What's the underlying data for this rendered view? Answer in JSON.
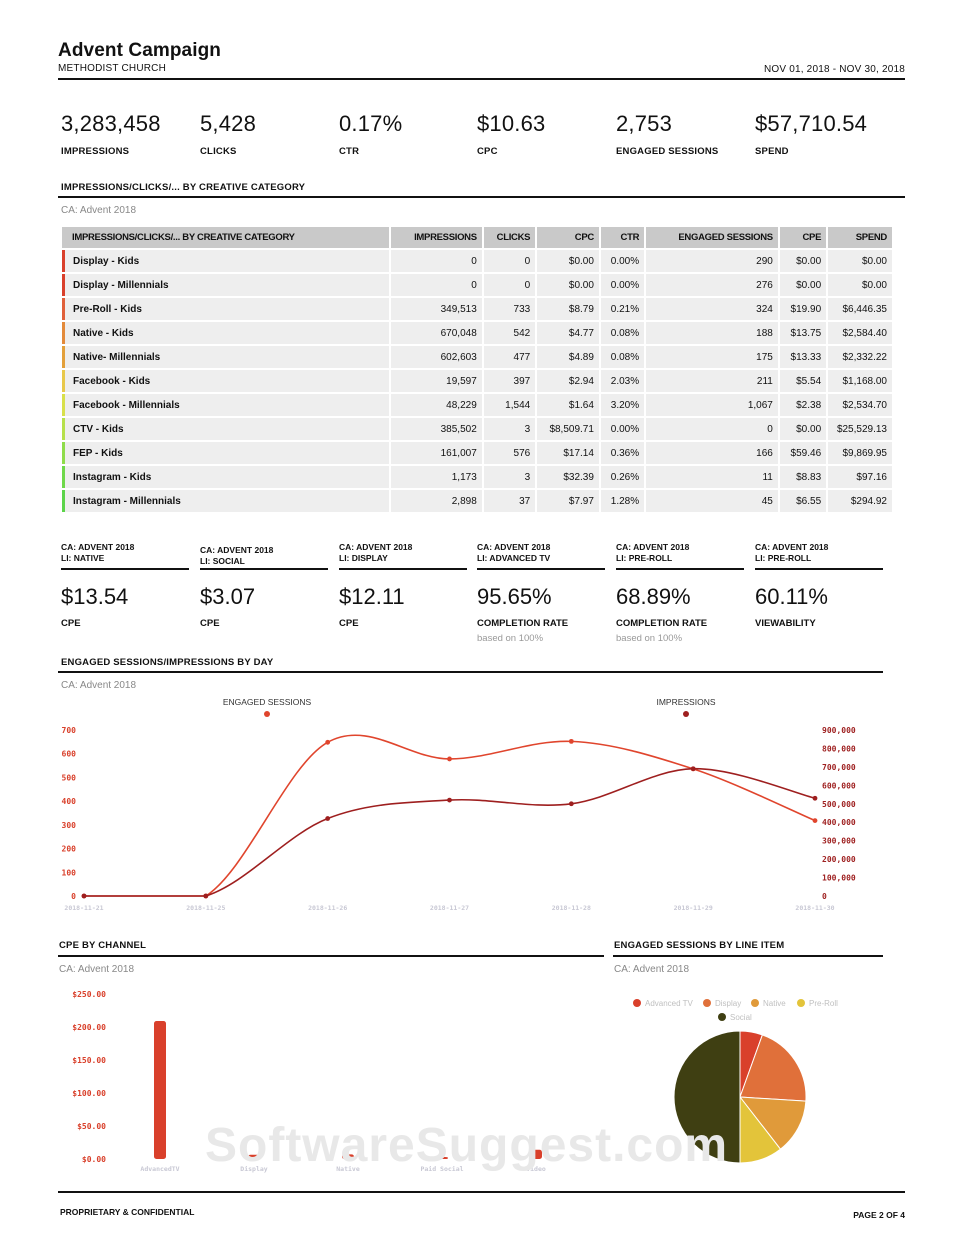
{
  "header": {
    "title": "Advent Campaign",
    "subtitle": "METHODIST CHURCH",
    "date_range": "NOV 01, 2018 - NOV 30, 2018"
  },
  "kpis": [
    {
      "value": "3,283,458",
      "label": "IMPRESSIONS"
    },
    {
      "value": "5,428",
      "label": "CLICKS"
    },
    {
      "value": "0.17%",
      "label": "CTR"
    },
    {
      "value": "$10.63",
      "label": "CPC"
    },
    {
      "value": "2,753",
      "label": "ENGAGED SESSIONS"
    },
    {
      "value": "$57,710.54",
      "label": "SPEND"
    }
  ],
  "creative_section": {
    "title": "IMPRESSIONS/CLICKS/... BY CREATIVE CATEGORY",
    "subtitle": "CA: Advent 2018",
    "columns": [
      "IMPRESSIONS/CLICKS/... BY CREATIVE CATEGORY",
      "IMPRESSIONS",
      "CLICKS",
      "CPC",
      "CTR",
      "ENGAGED SESSIONS",
      "CPE",
      "SPEND"
    ],
    "rows": [
      {
        "name": "Display - Kids",
        "color": "#d9402b",
        "cells": [
          "0",
          "0",
          "$0.00",
          "0.00%",
          "290",
          "$0.00",
          "$0.00"
        ]
      },
      {
        "name": "Display - Millennials",
        "color": "#d9402b",
        "cells": [
          "0",
          "0",
          "$0.00",
          "0.00%",
          "276",
          "$0.00",
          "$0.00"
        ]
      },
      {
        "name": "Pre-Roll - Kids",
        "color": "#e0603a",
        "cells": [
          "349,513",
          "733",
          "$8.79",
          "0.21%",
          "324",
          "$19.90",
          "$6,446.35"
        ]
      },
      {
        "name": "Native - Kids",
        "color": "#e38a3a",
        "cells": [
          "670,048",
          "542",
          "$4.77",
          "0.08%",
          "188",
          "$13.75",
          "$2,584.40"
        ]
      },
      {
        "name": "Native- Millennials",
        "color": "#e3a03a",
        "cells": [
          "602,603",
          "477",
          "$4.89",
          "0.08%",
          "175",
          "$13.33",
          "$2,332.22"
        ]
      },
      {
        "name": "Facebook - Kids",
        "color": "#e8c84a",
        "cells": [
          "19,597",
          "397",
          "$2.94",
          "2.03%",
          "211",
          "$5.54",
          "$1,168.00"
        ]
      },
      {
        "name": "Facebook - Millennials",
        "color": "#d8e04a",
        "cells": [
          "48,229",
          "1,544",
          "$1.64",
          "3.20%",
          "1,067",
          "$2.38",
          "$2,534.70"
        ]
      },
      {
        "name": "CTV - Kids",
        "color": "#b6e04a",
        "cells": [
          "385,502",
          "3",
          "$8,509.71",
          "0.00%",
          "0",
          "$0.00",
          "$25,529.13"
        ]
      },
      {
        "name": "FEP - Kids",
        "color": "#8fdc4a",
        "cells": [
          "161,007",
          "576",
          "$17.14",
          "0.36%",
          "166",
          "$59.46",
          "$9,869.95"
        ]
      },
      {
        "name": "Instagram - Kids",
        "color": "#6fd84a",
        "cells": [
          "1,173",
          "3",
          "$32.39",
          "0.26%",
          "11",
          "$8.83",
          "$97.16"
        ]
      },
      {
        "name": "Instagram - Millennials",
        "color": "#5cd44a",
        "cells": [
          "2,898",
          "37",
          "$7.97",
          "1.28%",
          "45",
          "$6.55",
          "$294.92"
        ]
      }
    ]
  },
  "mini_kpis": [
    {
      "l1": "CA: ADVENT 2018",
      "l2": "LI: NATIVE",
      "value": "$13.54",
      "caption": "CPE",
      "note": ""
    },
    {
      "l1": "CA: ADVENT 2018",
      "l2": "LI: SOCIAL",
      "value": "$3.07",
      "caption": "CPE",
      "note": ""
    },
    {
      "l1": "CA: ADVENT 2018",
      "l2": "LI: DISPLAY",
      "value": "$12.11",
      "caption": "CPE",
      "note": ""
    },
    {
      "l1": "CA: ADVENT 2018",
      "l2": "LI: ADVANCED TV",
      "value": "95.65%",
      "caption": "COMPLETION RATE",
      "note": "based on 100%"
    },
    {
      "l1": "CA: ADVENT 2018",
      "l2": "LI: PRE-ROLL",
      "value": "68.89%",
      "caption": "COMPLETION RATE",
      "note": "based on 100%"
    },
    {
      "l1": "CA: ADVENT 2018",
      "l2": "LI: PRE-ROLL",
      "value": "60.11%",
      "caption": "VIEWABILITY",
      "note": ""
    }
  ],
  "line_section": {
    "title": "ENGAGED SESSIONS/IMPRESSIONS BY DAY",
    "subtitle": "CA: Advent 2018"
  },
  "cpe_section": {
    "title": "CPE BY CHANNEL",
    "subtitle": "CA: Advent 2018"
  },
  "pie_section": {
    "title": "ENGAGED SESSIONS BY LINE ITEM",
    "subtitle": "CA: Advent 2018"
  },
  "chart_data": [
    {
      "type": "line",
      "x": [
        "2018-11-21",
        "2018-11-25",
        "2018-11-26",
        "2018-11-27",
        "2018-11-28",
        "2018-11-29",
        "2018-11-30"
      ],
      "series": [
        {
          "name": "ENGAGED SESSIONS",
          "axis": "left",
          "color": "#e0452d",
          "values": [
            0,
            0,
            648,
            578,
            652,
            536,
            318
          ]
        },
        {
          "name": "IMPRESSIONS",
          "axis": "right",
          "color": "#9e1f1f",
          "values": [
            0,
            0,
            420000,
            520000,
            500000,
            690000,
            530000
          ]
        }
      ],
      "ylim_left": [
        0,
        700
      ],
      "yticks_left": [
        "0",
        "100",
        "200",
        "300",
        "400",
        "500",
        "600",
        "700"
      ],
      "ylim_right": [
        0,
        900000
      ],
      "yticks_right": [
        "0",
        "100,000",
        "200,000",
        "300,000",
        "400,000",
        "500,000",
        "600,000",
        "700,000",
        "800,000",
        "900,000"
      ]
    },
    {
      "type": "bar",
      "categories": [
        "AdvancedTV",
        "Display",
        "Native",
        "Paid Social",
        "Video"
      ],
      "values": [
        209,
        6.5,
        7,
        1.5,
        14
      ],
      "color": "#d9402b",
      "ylim": [
        0,
        250
      ],
      "yticks": [
        "$0.00",
        "$50.00",
        "$100.00",
        "$150.00",
        "$200.00",
        "$250.00"
      ]
    },
    {
      "type": "pie",
      "slices": [
        {
          "name": "Advanced TV",
          "value": 5.5,
          "color": "#d9402b"
        },
        {
          "name": "Display",
          "value": 20.5,
          "color": "#e0703a"
        },
        {
          "name": "Native",
          "value": 13.5,
          "color": "#e09a3a"
        },
        {
          "name": "Pre-Roll",
          "value": 10.5,
          "color": "#e3c43a"
        },
        {
          "name": "Social",
          "value": 50.0,
          "color": "#3f3f12"
        }
      ]
    }
  ],
  "footer": {
    "left": "PROPRIETARY & CONFIDENTIAL",
    "right": "PAGE 2 OF 4"
  },
  "watermark": "SoftwareSuggest.com"
}
